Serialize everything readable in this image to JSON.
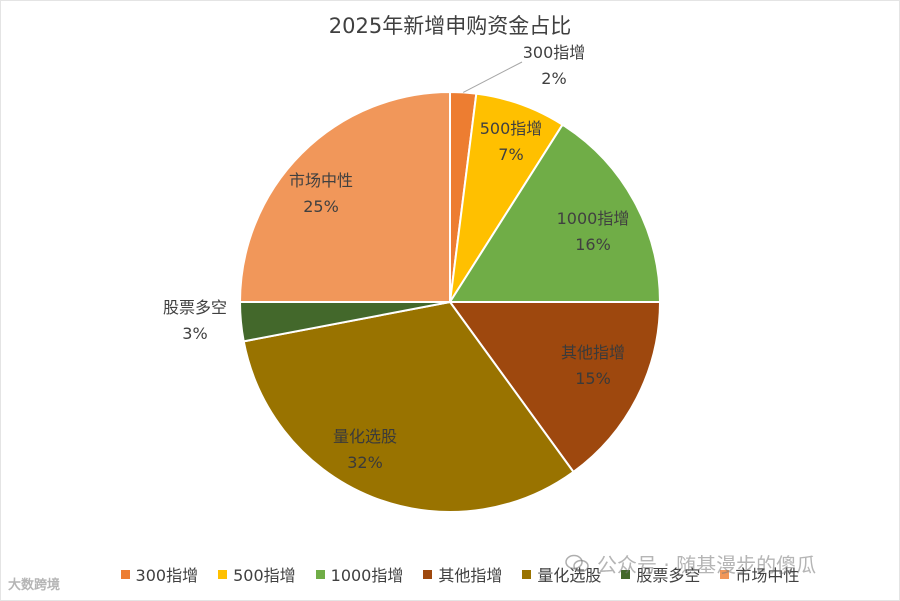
{
  "chart_data": {
    "type": "pie",
    "title": "2025年新增申购资金占比",
    "slices": [
      {
        "label": "300指增",
        "value": 2,
        "value_label": "2%",
        "color": "#ED7D31"
      },
      {
        "label": "500指增",
        "value": 7,
        "value_label": "7%",
        "color": "#FFC000"
      },
      {
        "label": "1000指增",
        "value": 16,
        "value_label": "16%",
        "color": "#70AD47"
      },
      {
        "label": "其他指增",
        "value": 15,
        "value_label": "15%",
        "color": "#9E480E"
      },
      {
        "label": "量化选股",
        "value": 32,
        "value_label": "32%",
        "color": "#997300"
      },
      {
        "label": "股票多空",
        "value": 3,
        "value_label": "3%",
        "color": "#43682B"
      },
      {
        "label": "市场中性",
        "value": 25,
        "value_label": "25%",
        "color": "#F1975A"
      }
    ],
    "legend_position": "bottom"
  },
  "watermark": {
    "text": "公众号 · 随基漫步的傻瓜"
  },
  "corner_logo": {
    "text": "大数跨境"
  }
}
